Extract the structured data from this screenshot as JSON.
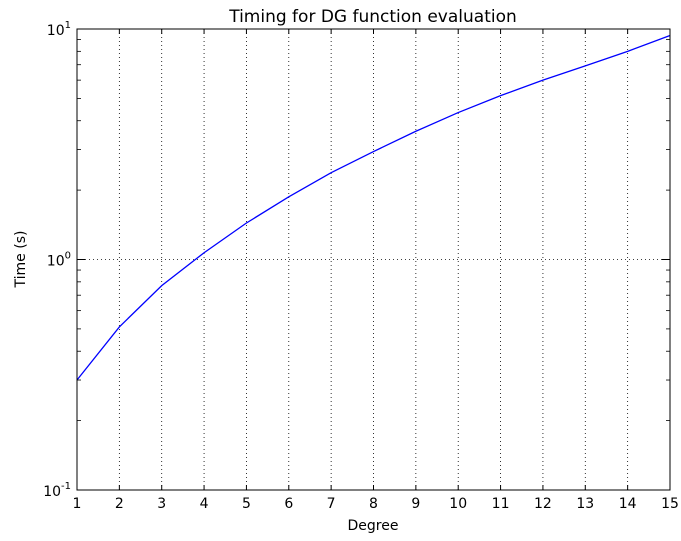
{
  "chart_data": {
    "type": "line",
    "title": "Timing for DG function evaluation",
    "xlabel": "Degree",
    "ylabel": "Time (s)",
    "xlim": [
      1,
      15
    ],
    "ylim": [
      0.1,
      10
    ],
    "yscale": "log",
    "grid": true,
    "x_ticks": [
      "1",
      "2",
      "3",
      "4",
      "5",
      "6",
      "7",
      "8",
      "9",
      "10",
      "11",
      "12",
      "13",
      "14",
      "15"
    ],
    "y_ticks": [
      {
        "value": 0.1,
        "base": "10",
        "exp": "-1"
      },
      {
        "value": 1,
        "base": "10",
        "exp": "0"
      },
      {
        "value": 10,
        "base": "10",
        "exp": "1"
      }
    ],
    "series": [
      {
        "color": "#0000ff",
        "x": [
          1,
          2,
          3,
          4,
          5,
          6,
          7,
          8,
          9,
          10,
          11,
          12,
          13,
          14,
          15
        ],
        "y": [
          0.3,
          0.51,
          0.77,
          1.07,
          1.44,
          1.87,
          2.38,
          2.94,
          3.6,
          4.34,
          5.14,
          6.0,
          6.92,
          8.0,
          9.37
        ]
      }
    ]
  }
}
